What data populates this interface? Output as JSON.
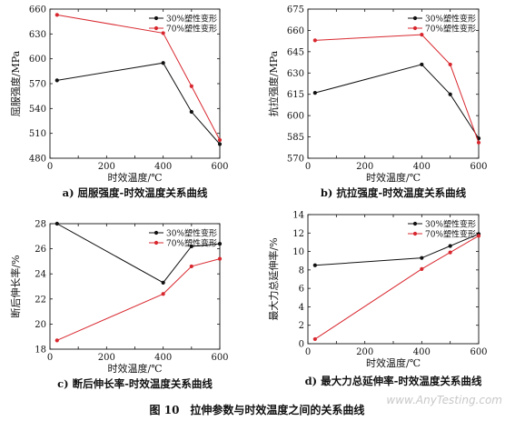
{
  "figure": {
    "caption": "图 10　拉伸参数与时效温度之间的关系曲线",
    "watermark": "www.AnyTesting.com"
  },
  "chart_data": [
    {
      "type": "line",
      "panel_label": "a) 屈服强度-时效温度关系曲线",
      "xlabel": "时效温度/℃",
      "ylabel": "屈服强度/MPa",
      "x": [
        25,
        400,
        500,
        600
      ],
      "xlim": [
        0,
        600
      ],
      "xticks": [
        0,
        100,
        200,
        300,
        400,
        500,
        600
      ],
      "ylim": [
        480,
        660
      ],
      "yticks": [
        480,
        510,
        540,
        570,
        600,
        630,
        660
      ],
      "legend_position": "top-right",
      "series": [
        {
          "name": "30%塑性变形",
          "color": "#111111",
          "values": [
            574,
            595,
            536,
            497
          ]
        },
        {
          "name": "70%塑性变形",
          "color": "#d8282f",
          "values": [
            653,
            631,
            567,
            502
          ]
        }
      ]
    },
    {
      "type": "line",
      "panel_label": "b) 抗拉强度-时效温度关系曲线",
      "xlabel": "时效温度/℃",
      "ylabel": "抗拉强度/MPa",
      "x": [
        25,
        400,
        500,
        600
      ],
      "xlim": [
        0,
        600
      ],
      "xticks": [
        0,
        100,
        200,
        300,
        400,
        500,
        600
      ],
      "ylim": [
        570,
        675
      ],
      "yticks": [
        570,
        585,
        600,
        615,
        630,
        645,
        660,
        675
      ],
      "legend_position": "top-right",
      "series": [
        {
          "name": "30%塑性变形",
          "color": "#111111",
          "values": [
            616,
            636,
            615,
            584
          ]
        },
        {
          "name": "70%塑性变形",
          "color": "#d8282f",
          "values": [
            653,
            657,
            636,
            581
          ]
        }
      ]
    },
    {
      "type": "line",
      "panel_label": "c) 断后伸长率-时效温度关系曲线",
      "xlabel": "时效温度/℃",
      "ylabel": "断后伸长率/%",
      "x": [
        25,
        400,
        500,
        600
      ],
      "xlim": [
        0,
        600
      ],
      "xticks": [
        0,
        100,
        200,
        300,
        400,
        500,
        600
      ],
      "ylim": [
        18,
        28
      ],
      "yticks": [
        18,
        20,
        22,
        24,
        26,
        28
      ],
      "legend_position": "top-right",
      "series": [
        {
          "name": "30%塑性变形",
          "color": "#111111",
          "values": [
            28.0,
            23.3,
            26.2,
            26.4
          ]
        },
        {
          "name": "70%塑性变形",
          "color": "#d8282f",
          "values": [
            18.7,
            22.4,
            24.6,
            25.2
          ]
        }
      ]
    },
    {
      "type": "line",
      "panel_label": "d) 最大力总延伸率-时效温度关系曲线",
      "xlabel": "时效温度/℃",
      "ylabel": "最大力总延伸率/%",
      "x": [
        25,
        400,
        500,
        600
      ],
      "xlim": [
        0,
        600
      ],
      "xticks": [
        0,
        100,
        200,
        300,
        400,
        500,
        600
      ],
      "ylim": [
        0,
        14
      ],
      "yticks": [
        0,
        2,
        4,
        6,
        8,
        10,
        12,
        14
      ],
      "legend_position": "top-right",
      "series": [
        {
          "name": "30%塑性变形",
          "color": "#111111",
          "values": [
            8.5,
            9.3,
            10.6,
            11.9
          ]
        },
        {
          "name": "70%塑性变形",
          "color": "#d8282f",
          "values": [
            0.5,
            8.1,
            9.9,
            11.7
          ]
        }
      ]
    }
  ]
}
